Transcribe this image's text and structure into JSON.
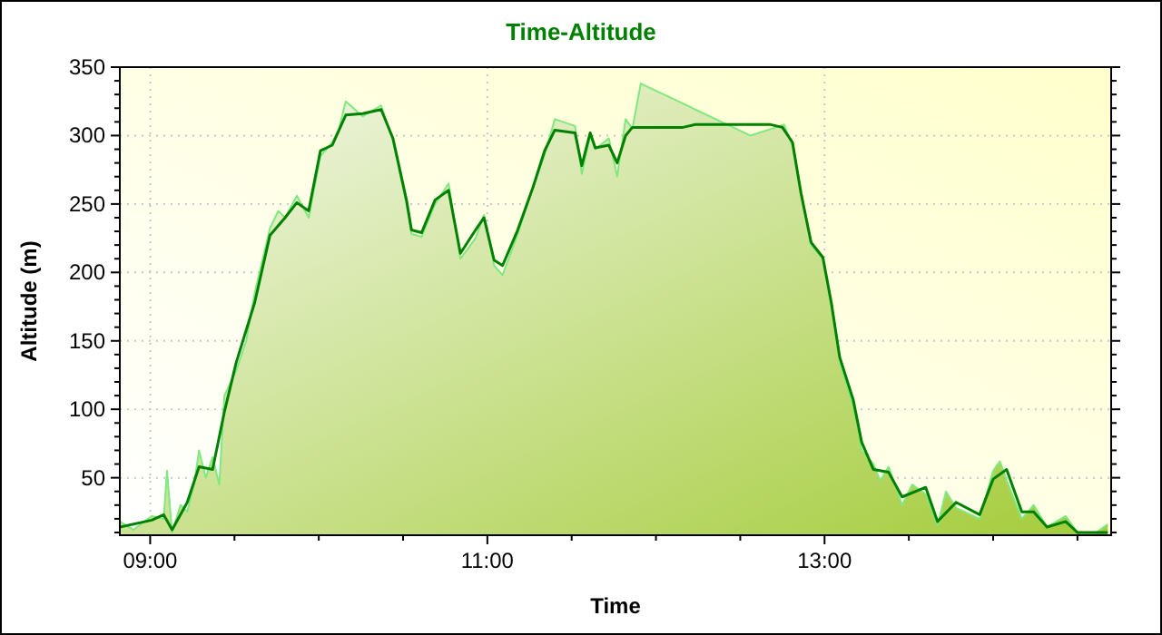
{
  "chart_data": {
    "type": "line",
    "title": "Time-Altitude",
    "xlabel": "Time",
    "ylabel": "Altitude (m)",
    "xlim": [
      8.82,
      14.7
    ],
    "ylim": [
      8,
      350
    ],
    "xticks": [
      {
        "value": 9,
        "label": "09:00"
      },
      {
        "value": 9.5,
        "label": null
      },
      {
        "value": 10,
        "label": null
      },
      {
        "value": 10.5,
        "label": null
      },
      {
        "value": 11,
        "label": "11:00"
      },
      {
        "value": 11.5,
        "label": null
      },
      {
        "value": 12,
        "label": null
      },
      {
        "value": 12.5,
        "label": null
      },
      {
        "value": 13,
        "label": "13:00"
      },
      {
        "value": 13.5,
        "label": null
      },
      {
        "value": 14,
        "label": null
      },
      {
        "value": 14.5,
        "label": null
      }
    ],
    "yticks": [
      {
        "value": 10,
        "label": null
      },
      {
        "value": 20,
        "label": null
      },
      {
        "value": 30,
        "label": null
      },
      {
        "value": 40,
        "label": null
      },
      50,
      {
        "value": 60,
        "label": null
      },
      {
        "value": 70,
        "label": null
      },
      {
        "value": 80,
        "label": null
      },
      {
        "value": 90,
        "label": null
      },
      100,
      {
        "value": 110,
        "label": null
      },
      {
        "value": 120,
        "label": null
      },
      {
        "value": 130,
        "label": null
      },
      {
        "value": 140,
        "label": null
      },
      150,
      {
        "value": 160,
        "label": null
      },
      {
        "value": 170,
        "label": null
      },
      {
        "value": 180,
        "label": null
      },
      {
        "value": 190,
        "label": null
      },
      200,
      {
        "value": 210,
        "label": null
      },
      {
        "value": 220,
        "label": null
      },
      {
        "value": 230,
        "label": null
      },
      {
        "value": 240,
        "label": null
      },
      250,
      {
        "value": 260,
        "label": null
      },
      {
        "value": 270,
        "label": null
      },
      {
        "value": 280,
        "label": null
      },
      {
        "value": 290,
        "label": null
      },
      300,
      {
        "value": 310,
        "label": null
      },
      {
        "value": 320,
        "label": null
      },
      {
        "value": 330,
        "label": null
      },
      {
        "value": 340,
        "label": null
      },
      350
    ],
    "grid": true,
    "marker": "none",
    "line_style": "solid",
    "series": [
      {
        "type": "area",
        "color": "#80e880",
        "x": [
          8.82,
          8.9,
          9.01,
          9.08,
          9.1,
          9.13,
          9.18,
          9.22,
          9.26,
          9.29,
          9.33,
          9.37,
          9.41,
          9.44,
          9.51,
          9.57,
          9.62,
          9.71,
          9.76,
          9.8,
          9.87,
          9.94,
          10.01,
          10.08,
          10.12,
          10.16,
          10.26,
          10.37,
          10.44,
          10.52,
          10.55,
          10.61,
          10.69,
          10.77,
          10.84,
          10.93,
          10.98,
          11.04,
          11.09,
          11.18,
          11.27,
          11.34,
          11.4,
          11.52,
          11.56,
          11.61,
          11.64,
          11.72,
          11.77,
          11.82,
          11.86,
          11.91,
          12.56,
          12.76,
          12.81,
          12.86,
          12.92,
          12.99,
          13.04,
          13.09,
          13.17,
          13.2,
          13.22,
          13.29,
          13.33,
          13.38,
          13.46,
          13.52,
          13.6,
          13.67,
          13.72,
          13.78,
          13.92,
          13.97,
          14.0,
          14.04,
          14.08,
          14.17,
          14.24,
          14.28,
          14.32,
          14.43,
          14.5,
          14.6,
          14.68
        ],
        "values": [
          18,
          12,
          22,
          20,
          55,
          10,
          30,
          25,
          45,
          70,
          50,
          65,
          45,
          110,
          128,
          150,
          185,
          232,
          245,
          240,
          256,
          240,
          285,
          295,
          305,
          325,
          314,
          322,
          296,
          250,
          228,
          226,
          250,
          265,
          210,
          225,
          242,
          205,
          198,
          228,
          262,
          286,
          312,
          307,
          272,
          300,
          290,
          298,
          270,
          312,
          305,
          338,
          300,
          308,
          292,
          260,
          220,
          210,
          175,
          135,
          102,
          85,
          70,
          60,
          48,
          58,
          30,
          45,
          38,
          15,
          40,
          28,
          20,
          42,
          55,
          62,
          48,
          20,
          30,
          22,
          14,
          22,
          10,
          9,
          16
        ]
      },
      {
        "color": "#008000",
        "x": [
          8.82,
          9.01,
          9.08,
          9.13,
          9.22,
          9.29,
          9.37,
          9.44,
          9.51,
          9.62,
          9.71,
          9.8,
          9.87,
          9.94,
          10.01,
          10.08,
          10.16,
          10.26,
          10.37,
          10.44,
          10.52,
          10.55,
          10.61,
          10.69,
          10.77,
          10.84,
          10.93,
          10.98,
          11.04,
          11.09,
          11.18,
          11.27,
          11.34,
          11.4,
          11.52,
          11.56,
          11.61,
          11.64,
          11.72,
          11.77,
          11.82,
          11.86,
          12.16,
          12.23,
          12.68,
          12.75,
          12.81,
          12.86,
          12.92,
          12.99,
          13.04,
          13.09,
          13.17,
          13.22,
          13.29,
          13.38,
          13.46,
          13.6,
          13.67,
          13.78,
          13.92,
          14.0,
          14.08,
          14.17,
          14.24,
          14.32,
          14.43,
          14.5,
          14.68
        ],
        "values": [
          14,
          19,
          23,
          12,
          32,
          58,
          56,
          98,
          134,
          178,
          227,
          240,
          251,
          245,
          289,
          293,
          315,
          316,
          319,
          298,
          253,
          231,
          229,
          253,
          260,
          214,
          231,
          240,
          209,
          205,
          231,
          262,
          289,
          304,
          302,
          278,
          302,
          291,
          293,
          280,
          300,
          306,
          306,
          308,
          308,
          306,
          295,
          258,
          222,
          211,
          178,
          138,
          107,
          76,
          56,
          54,
          36,
          43,
          18,
          32,
          23,
          49,
          56,
          25,
          25,
          14,
          18,
          10,
          10
        ]
      }
    ]
  }
}
